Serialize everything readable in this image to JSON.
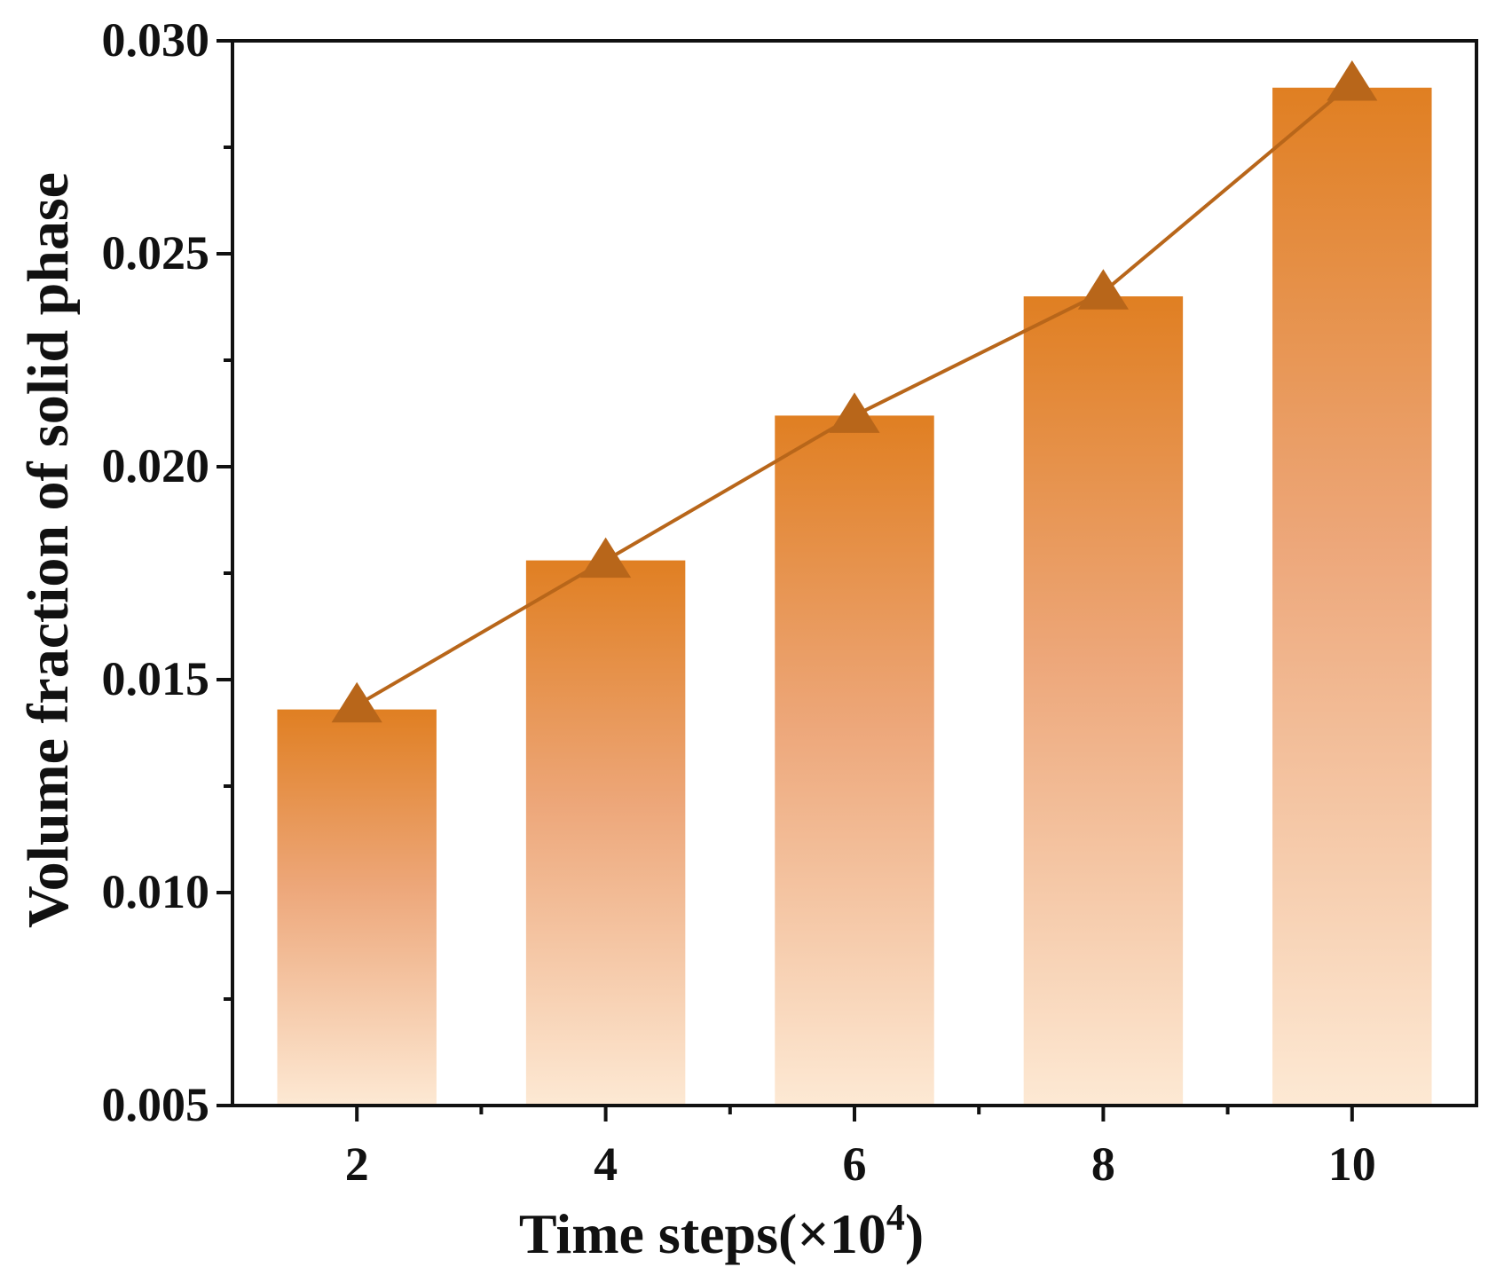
{
  "chart_data": {
    "type": "bar",
    "title": "",
    "xlabel": "Time steps(×10",
    "xlabel_superscript": "4",
    "xlabel_suffix": ")",
    "ylabel": "Volume fraction of solid phase",
    "categories": [
      "2",
      "4",
      "6",
      "8",
      "10"
    ],
    "x": [
      2,
      4,
      6,
      8,
      10
    ],
    "series": [
      {
        "name": "bars",
        "kind": "bar",
        "values": [
          0.0143,
          0.0178,
          0.0212,
          0.024,
          0.0289
        ]
      },
      {
        "name": "line",
        "kind": "line-triangle-markers",
        "values": [
          0.0144,
          0.0178,
          0.0212,
          0.0241,
          0.029
        ]
      }
    ],
    "xlim": [
      1,
      11
    ],
    "ylim": [
      0.005,
      0.03
    ],
    "yticks": [
      "0.005",
      "0.010",
      "0.015",
      "0.020",
      "0.025",
      "0.030"
    ],
    "grid": false,
    "legend": "none",
    "colors": {
      "bar_top": "#e07f22",
      "bar_bottom": "#fde9d4",
      "line": "#b8661a",
      "marker": "#b8661a",
      "axis": "#111111"
    }
  }
}
